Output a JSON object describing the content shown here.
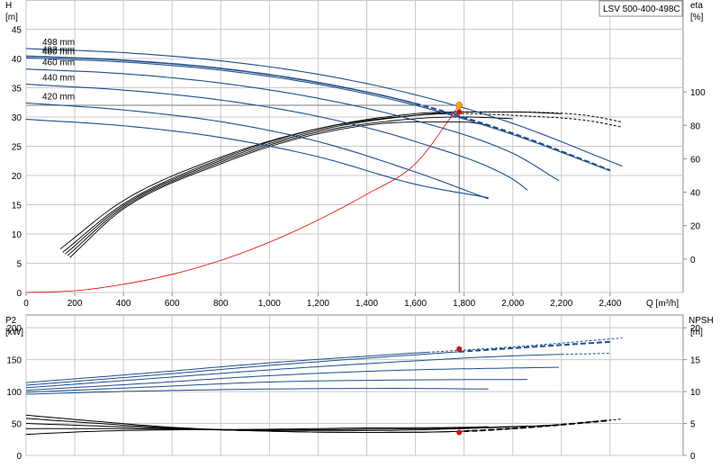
{
  "pump_label": "LSV 500-400-498C",
  "chart_data": [
    {
      "type": "line",
      "name": "head-efficiency",
      "x_label": "Q [m³/h]",
      "y_left_label": [
        "H",
        "[m]"
      ],
      "y_right_label": [
        "eta",
        "[%]"
      ],
      "xlim": [
        0,
        2700
      ],
      "xticks": [
        0,
        200,
        400,
        600,
        800,
        1000,
        1200,
        1400,
        1600,
        1800,
        2000,
        2200,
        2400
      ],
      "xtick_labels": [
        "0",
        "200",
        "400",
        "600",
        "800",
        "1,000",
        "1,200",
        "1,400",
        "1,600",
        "1,800",
        "2,000",
        "2,200",
        "2,400"
      ],
      "ylim_left": [
        0,
        50
      ],
      "yticks_left": [
        0,
        5,
        10,
        15,
        20,
        25,
        30,
        35,
        40,
        45
      ],
      "ylim_right": [
        -20,
        155
      ],
      "yticks_right": [
        0,
        20,
        40,
        60,
        80,
        100
      ],
      "grid": true,
      "head_curves": [
        {
          "label": "498 mm",
          "x": [
            0,
            400,
            800,
            1200,
            1600,
            2000,
            2450
          ],
          "y": [
            41.7,
            41.0,
            39.6,
            37.3,
            33.8,
            28.9,
            21.6
          ],
          "dashed_from": 2460
        },
        {
          "label": "482 mm",
          "x": [
            0,
            400,
            800,
            1200,
            1600,
            2000,
            2400
          ],
          "y": [
            40.4,
            39.7,
            38.3,
            35.9,
            32.3,
            27.2,
            20.9
          ],
          "dashed_from": 1600
        },
        {
          "label": "480 mm",
          "x": [
            0,
            400,
            800,
            1200,
            1600,
            2000,
            2400
          ],
          "y": [
            40.1,
            39.4,
            38.0,
            35.6,
            32.0,
            27.0,
            20.8
          ],
          "dashed_from": 2410
        },
        {
          "label": "460 mm",
          "x": [
            0,
            400,
            800,
            1200,
            1600,
            2000,
            2190
          ],
          "y": [
            38.2,
            37.4,
            35.8,
            33.2,
            29.4,
            23.8,
            19.1
          ],
          "dashed_from": 2200
        },
        {
          "label": "440 mm",
          "x": [
            0,
            400,
            800,
            1200,
            1600,
            2000,
            2060
          ],
          "y": [
            35.6,
            34.6,
            32.9,
            30.1,
            25.8,
            19.4,
            17.5
          ],
          "dashed_from": 2070
        },
        {
          "label": "420 mm",
          "x": [
            0,
            400,
            800,
            1200,
            1600,
            1900
          ],
          "y": [
            32.4,
            31.2,
            29.2,
            25.8,
            20.6,
            16.0
          ],
          "dashed_from": 1910
        },
        {
          "label": "",
          "x": [
            0,
            400,
            800,
            1200,
            1600,
            1900
          ],
          "y": [
            29.6,
            28.5,
            26.5,
            23.2,
            18.5,
            16.2
          ],
          "dashed_from": 1910
        }
      ],
      "efficiency_curves": [
        {
          "x": [
            140,
            400,
            800,
            1200,
            1600,
            1800,
            2000,
            2300,
            2450
          ],
          "y": [
            6,
            35,
            61,
            78,
            86,
            87,
            86,
            83,
            79
          ],
          "dashed_from": 1770
        },
        {
          "x": [
            150,
            400,
            800,
            1200,
            1600,
            1800,
            2000,
            2300,
            2450
          ],
          "y": [
            4,
            33,
            60,
            78,
            87,
            88,
            88,
            86,
            82
          ],
          "dashed_from": 1770
        },
        {
          "x": [
            160,
            400,
            800,
            1200,
            1600,
            1800,
            2000,
            2200
          ],
          "y": [
            3,
            32,
            59,
            77,
            86,
            88,
            88,
            87
          ],
          "dashed_from": 2200
        },
        {
          "x": [
            170,
            400,
            800,
            1200,
            1600,
            1800,
            2000
          ],
          "y": [
            2,
            31,
            58,
            76,
            84,
            85,
            84
          ],
          "dashed_from": 2060
        },
        {
          "x": [
            180,
            400,
            800,
            1200,
            1600,
            1800,
            1900
          ],
          "y": [
            1,
            30,
            57,
            75,
            82,
            82,
            80
          ],
          "dashed_from": 1910
        }
      ],
      "system_curve": {
        "x": [
          0,
          200,
          400,
          600,
          800,
          1000,
          1200,
          1400,
          1600,
          1780
        ],
        "y": [
          0,
          0.3,
          1.4,
          3.1,
          5.5,
          8.6,
          12.4,
          16.8,
          22.0,
          32.0
        ]
      },
      "duty_point": {
        "q": 1780,
        "h": 32.0,
        "eta": 88
      }
    },
    {
      "type": "line",
      "name": "power-npsh",
      "y_left_label": [
        "P2",
        "[kW]"
      ],
      "y_right_label": [
        "NPSH",
        "[m]"
      ],
      "xlim": [
        0,
        2700
      ],
      "ylim_left": [
        0,
        220
      ],
      "yticks_left": [
        0,
        50,
        100,
        150,
        200
      ],
      "ylim_right": [
        0,
        22
      ],
      "yticks_right": [
        0,
        5,
        10,
        15,
        20
      ],
      "grid": true,
      "power_curves": [
        {
          "x": [
            0,
            500,
            1000,
            1500,
            2000,
            2450
          ],
          "y": [
            114,
            129,
            145,
            158,
            170,
            184
          ],
          "dashed_from": 1650
        },
        {
          "x": [
            0,
            500,
            1000,
            1500,
            2000,
            2400
          ],
          "y": [
            110,
            125,
            141,
            155,
            168,
            178
          ],
          "dashed_from": 1780
        },
        {
          "x": [
            0,
            500,
            1000,
            1500,
            2000,
            2400
          ],
          "y": [
            106,
            120,
            134,
            146,
            156,
            160
          ],
          "dashed_from": 2200
        },
        {
          "x": [
            0,
            500,
            1000,
            1500,
            2000,
            2190
          ],
          "y": [
            102,
            113,
            125,
            133,
            137,
            138
          ],
          "dashed_from": 2200
        },
        {
          "x": [
            0,
            500,
            1000,
            1500,
            2060
          ],
          "y": [
            99,
            107,
            115,
            118,
            119
          ],
          "dashed_from": 2070
        },
        {
          "x": [
            0,
            500,
            1000,
            1500,
            1900
          ],
          "y": [
            96,
            101,
            104,
            105,
            104
          ],
          "dashed_from": 1910
        }
      ],
      "npsh_curves": [
        {
          "x": [
            0,
            300,
            600,
            1000,
            1400,
            1800,
            2100,
            2450
          ],
          "y": [
            6.3,
            5.3,
            4.4,
            3.8,
            3.6,
            3.8,
            4.5,
            5.7
          ],
          "dashed_from": 1750
        },
        {
          "x": [
            0,
            300,
            600,
            1000,
            1400,
            1800,
            2100,
            2400
          ],
          "y": [
            5.8,
            5.0,
            4.3,
            3.8,
            3.6,
            3.8,
            4.5,
            5.5
          ],
          "dashed_from": 1800
        },
        {
          "x": [
            0,
            300,
            600,
            1000,
            1400,
            1800,
            2200
          ],
          "y": [
            5.0,
            4.6,
            4.2,
            3.9,
            3.9,
            4.2,
            4.8
          ],
          "dashed_from": 2200
        },
        {
          "x": [
            0,
            300,
            600,
            1000,
            1400,
            1800,
            2060
          ],
          "y": [
            4.2,
            4.2,
            4.1,
            4.0,
            4.1,
            4.3,
            4.6
          ],
          "dashed_from": 2070
        },
        {
          "x": [
            0,
            300,
            600,
            1000,
            1400,
            1800,
            1900
          ],
          "y": [
            3.3,
            3.8,
            4.0,
            4.1,
            4.3,
            4.4,
            4.5
          ],
          "dashed_from": 1910
        }
      ],
      "duty_point": {
        "q": 1780,
        "p2": 167,
        "npsh": 3.6
      }
    }
  ]
}
